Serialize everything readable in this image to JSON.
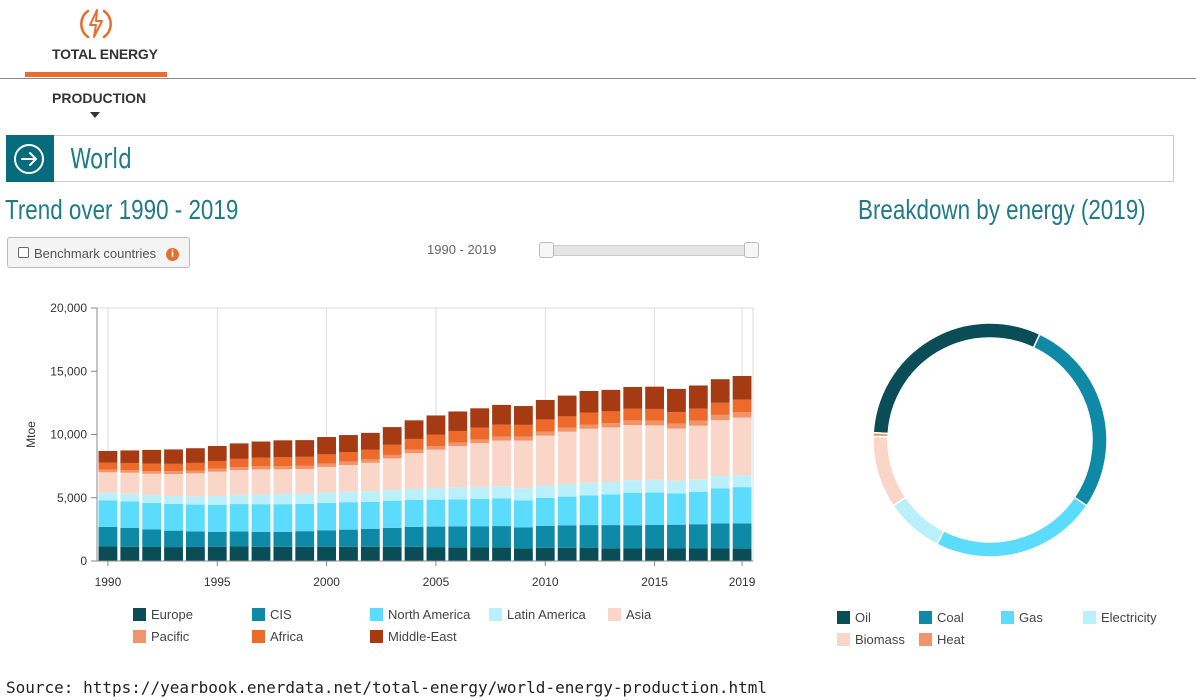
{
  "nav": {
    "main_tab": "TOTAL ENERGY",
    "sub_tab": "PRODUCTION",
    "logo_icon": "lightning-circle-icon"
  },
  "region": {
    "name": "World",
    "button_icon": "arrow-right-circle-icon"
  },
  "trend": {
    "heading": "Trend over 1990 - 2019",
    "benchmark_label": "Benchmark countries",
    "range_label": "1990 - 2019"
  },
  "breakdown": {
    "heading": "Breakdown by energy (2019)"
  },
  "source": "Source: https://yearbook.enerdata.net/total-energy/world-energy-production.html",
  "chart_data": [
    {
      "type": "bar",
      "stacked": true,
      "ylabel": "Mtoe",
      "ylim": [
        0,
        20000
      ],
      "yticks": [
        0,
        5000,
        10000,
        15000,
        20000
      ],
      "ytick_labels": [
        "0",
        "5,000",
        "10,000",
        "15,000",
        "20,000"
      ],
      "xtick_labels": [
        "1990",
        "1995",
        "2000",
        "2005",
        "2010",
        "2015",
        "2019"
      ],
      "grid": true,
      "legend_position": "bottom",
      "categories": [
        "1990",
        "1991",
        "1992",
        "1993",
        "1994",
        "1995",
        "1996",
        "1997",
        "1998",
        "1999",
        "2000",
        "2001",
        "2002",
        "2003",
        "2004",
        "2005",
        "2006",
        "2007",
        "2008",
        "2009",
        "2010",
        "2011",
        "2012",
        "2013",
        "2014",
        "2015",
        "2016",
        "2017",
        "2018",
        "2019"
      ],
      "series": [
        {
          "name": "Europe",
          "color": "#0a4d57",
          "values": [
            1150,
            1120,
            1110,
            1100,
            1110,
            1130,
            1150,
            1130,
            1120,
            1120,
            1130,
            1120,
            1120,
            1120,
            1120,
            1100,
            1080,
            1070,
            1060,
            1010,
            1040,
            1040,
            1030,
            1010,
            990,
            990,
            990,
            990,
            990,
            980
          ]
        },
        {
          "name": "CIS",
          "color": "#0e8aa6",
          "values": [
            1550,
            1490,
            1380,
            1300,
            1220,
            1180,
            1180,
            1180,
            1190,
            1240,
            1300,
            1360,
            1410,
            1500,
            1580,
            1620,
            1660,
            1680,
            1700,
            1640,
            1740,
            1780,
            1810,
            1830,
            1840,
            1860,
            1880,
            1920,
            1980,
            2000
          ]
        },
        {
          "name": "North America",
          "color": "#5bdcfd",
          "values": [
            2100,
            2100,
            2100,
            2110,
            2130,
            2140,
            2170,
            2180,
            2180,
            2150,
            2160,
            2170,
            2150,
            2140,
            2140,
            2130,
            2140,
            2160,
            2180,
            2150,
            2200,
            2270,
            2340,
            2420,
            2560,
            2560,
            2480,
            2560,
            2770,
            2860
          ]
        },
        {
          "name": "Latin America",
          "color": "#b9f0fb",
          "values": [
            600,
            610,
            620,
            630,
            660,
            690,
            730,
            770,
            800,
            800,
            820,
            830,
            840,
            850,
            890,
            920,
            940,
            950,
            970,
            960,
            990,
            1000,
            1000,
            990,
            1000,
            1010,
            990,
            990,
            980,
            950
          ]
        },
        {
          "name": "Asia",
          "color": "#f9d6c7",
          "values": [
            1620,
            1660,
            1690,
            1740,
            1810,
            1920,
            1960,
            1980,
            1960,
            1960,
            2030,
            2110,
            2240,
            2500,
            2790,
            3030,
            3260,
            3450,
            3610,
            3760,
            3940,
            4130,
            4270,
            4310,
            4360,
            4300,
            4130,
            4240,
            4410,
            4550
          ]
        },
        {
          "name": "Pacific",
          "color": "#ef946b",
          "values": [
            200,
            210,
            215,
            220,
            225,
            230,
            235,
            245,
            250,
            255,
            260,
            265,
            270,
            275,
            280,
            285,
            290,
            300,
            310,
            320,
            330,
            335,
            340,
            350,
            365,
            380,
            395,
            405,
            420,
            435
          ]
        },
        {
          "name": "Africa",
          "color": "#ee6a2b",
          "values": [
            550,
            560,
            570,
            580,
            600,
            620,
            650,
            680,
            700,
            710,
            730,
            740,
            760,
            800,
            850,
            890,
            910,
            930,
            950,
            920,
            950,
            880,
            950,
            920,
            920,
            920,
            900,
            940,
            960,
            980
          ]
        },
        {
          "name": "Middle-East",
          "color": "#a53a13",
          "values": [
            930,
            990,
            1100,
            1140,
            1160,
            1180,
            1220,
            1280,
            1340,
            1320,
            1370,
            1360,
            1340,
            1400,
            1470,
            1530,
            1540,
            1530,
            1560,
            1490,
            1540,
            1640,
            1700,
            1700,
            1720,
            1760,
            1840,
            1830,
            1860,
            1870
          ]
        }
      ]
    },
    {
      "type": "pie",
      "donut": true,
      "legend_position": "bottom",
      "year": "2019",
      "categories": [
        "Oil",
        "Coal",
        "Gas",
        "Electricity",
        "Biomass",
        "Heat"
      ],
      "values": [
        31,
        27.5,
        23,
        8,
        10,
        0.5
      ],
      "colors": [
        "#0a4d57",
        "#0e8aa6",
        "#5bdcfd",
        "#b9f0fb",
        "#f9d6c7",
        "#ef946b"
      ]
    }
  ]
}
